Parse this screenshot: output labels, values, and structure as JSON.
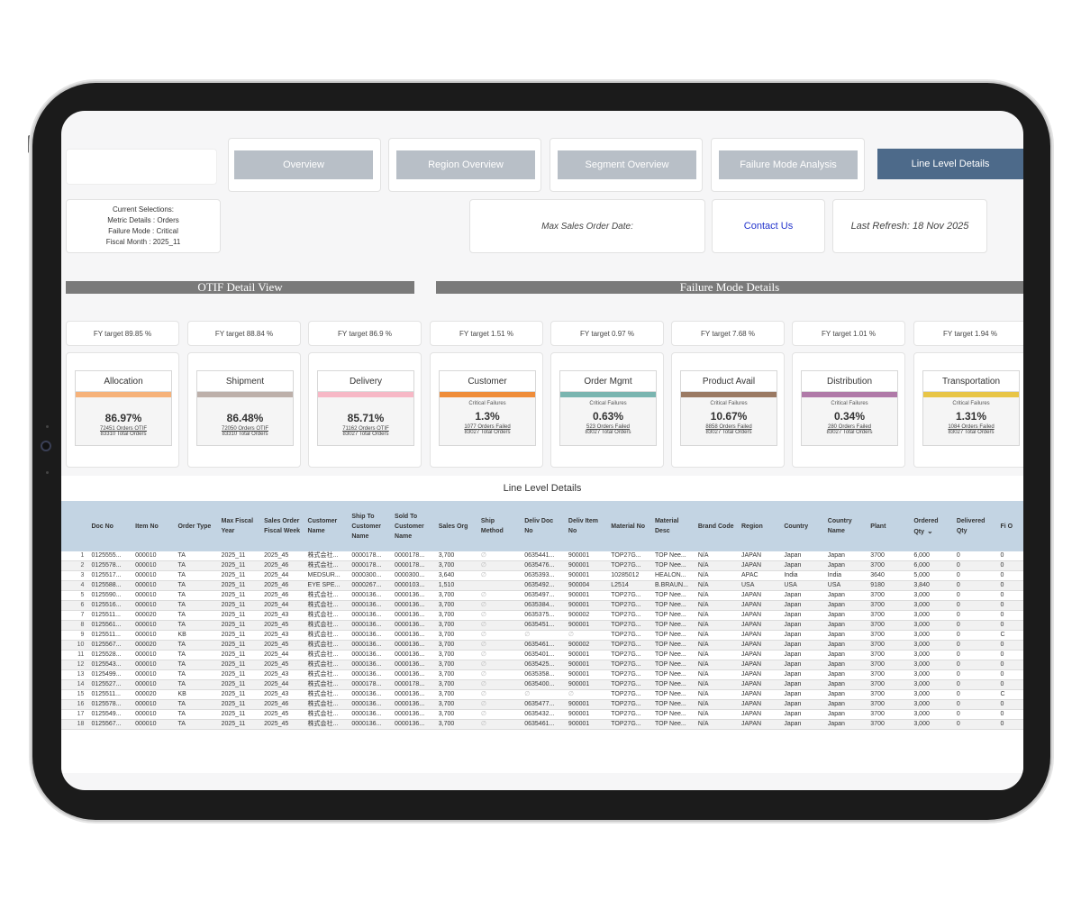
{
  "nav": {
    "overview": "Overview",
    "region_overview": "Region Overview",
    "segment_overview": "Segment Overview",
    "failure_mode_analysis": "Failure Mode Analysis",
    "line_level_details": "Line Level Details"
  },
  "selections": {
    "heading": "Current Selections:",
    "metric": "Metric Details :  Orders",
    "failure": "Failure Mode :  Critical",
    "month": "Fiscal Month :  2025_11"
  },
  "info": {
    "max_sales_order_date": "Max Sales Order Date:",
    "contact_us": "Contact Us",
    "last_refresh": "Last Refresh: 18 Nov 2025"
  },
  "sections": {
    "otif": "OTIF Detail View",
    "failure": "Failure Mode Details",
    "line_level": "Line Level Details"
  },
  "targets": [
    "FY target 89.85 %",
    "FY target 88.84 %",
    "FY target 86.9 %",
    "FY target 1.51 %",
    "FY target 0.97 %",
    "FY target 7.68 %",
    "FY target 1.01 %",
    "FY target 1.94 %"
  ],
  "metrics": [
    {
      "title": "Allocation",
      "color": "#f6b27a",
      "sub": "",
      "pct": "86.97%",
      "line1": "72451  Orders  OTIF",
      "line2": "83310  Total  Orders"
    },
    {
      "title": "Shipment",
      "color": "#bdb0aa",
      "sub": "",
      "pct": "86.48%",
      "line1": "72050  Orders  OTIF",
      "line2": "83310  Total  Orders"
    },
    {
      "title": "Delivery",
      "color": "#f7b8c6",
      "sub": "",
      "pct": "85.71%",
      "line1": "71162  Orders  OTIF",
      "line2": "83027 Total Orders"
    },
    {
      "title": "Customer",
      "color": "#ef8d3a",
      "sub": "Critical  Failures",
      "pct": "1.3%",
      "line1": "1077  Orders  Failed",
      "line2": "83027  Total  Orders"
    },
    {
      "title": "Order Mgmt",
      "color": "#7ab5b0",
      "sub": "Critical  Failures",
      "pct": "0.63%",
      "line1": "523  Orders  Failed",
      "line2": "83027  Total  Orders"
    },
    {
      "title": "Product Avail",
      "color": "#9b7a63",
      "sub": "Critical  Failures",
      "pct": "10.67%",
      "line1": "8858  Orders  Failed",
      "line2": "83027  Total  Orders"
    },
    {
      "title": "Distribution",
      "color": "#b07aa8",
      "sub": "Critical  Failures",
      "pct": "0.34%",
      "line1": "280  Orders  Failed",
      "line2": "83027  Total  Orders"
    },
    {
      "title": "Transportation",
      "color": "#e8c547",
      "sub": "Critical  Failures",
      "pct": "1.31%",
      "line1": "1084  Orders  Failed",
      "line2": "83027  Total  Orders"
    }
  ],
  "table": {
    "headers": [
      "",
      "Doc No",
      "Item No",
      "Order Type",
      "Max Fiscal Year",
      "Sales Order Fiscal Week",
      "Customer Name",
      "Ship To Customer Name",
      "Sold To Customer Name",
      "Sales Org",
      "Ship Method",
      "Deliv Doc No",
      "Deliv Item No",
      "Material No",
      "Material Desc",
      "Brand Code",
      "Region",
      "Country",
      "Country Name",
      "Plant",
      "Ordered Qty",
      "Delivered Qty",
      "Fi O"
    ],
    "sort_icon": "chevron-down-icon",
    "rows": [
      [
        "1",
        "0125555...",
        "000010",
        "TA",
        "2025_11",
        "2025_45",
        "株式会社...",
        "0000178...",
        "0000178...",
        "3,700",
        "∅",
        "0635441...",
        "900001",
        "TOP27G...",
        "TOP Nee...",
        "N/A",
        "JAPAN",
        "Japan",
        "Japan",
        "3700",
        "6,000",
        "0",
        "0"
      ],
      [
        "2",
        "0125578...",
        "000010",
        "TA",
        "2025_11",
        "2025_46",
        "株式会社...",
        "0000178...",
        "0000178...",
        "3,700",
        "∅",
        "0635476...",
        "900001",
        "TOP27G...",
        "TOP Nee...",
        "N/A",
        "JAPAN",
        "Japan",
        "Japan",
        "3700",
        "6,000",
        "0",
        "0"
      ],
      [
        "3",
        "0125517...",
        "000010",
        "TA",
        "2025_11",
        "2025_44",
        "MEDSUR...",
        "0000300...",
        "0000300...",
        "3,640",
        "∅",
        "0635393...",
        "900001",
        "10285012",
        "HEALON...",
        "N/A",
        "APAC",
        "India",
        "India",
        "3640",
        "5,000",
        "0",
        "0"
      ],
      [
        "4",
        "0125588...",
        "000010",
        "TA",
        "2025_11",
        "2025_46",
        "EYE SPE...",
        "0000267...",
        "0000103...",
        "1,510",
        "",
        "0635492...",
        "900004",
        "L2514",
        "B.BRAUN...",
        "N/A",
        "USA",
        "USA",
        "USA",
        "9180",
        "3,840",
        "0",
        "0"
      ],
      [
        "5",
        "0125590...",
        "000010",
        "TA",
        "2025_11",
        "2025_46",
        "株式会社...",
        "0000136...",
        "0000136...",
        "3,700",
        "∅",
        "0635497...",
        "900001",
        "TOP27G...",
        "TOP Nee...",
        "N/A",
        "JAPAN",
        "Japan",
        "Japan",
        "3700",
        "3,000",
        "0",
        "0"
      ],
      [
        "6",
        "0125516...",
        "000010",
        "TA",
        "2025_11",
        "2025_44",
        "株式会社...",
        "0000136...",
        "0000136...",
        "3,700",
        "∅",
        "0635384...",
        "900001",
        "TOP27G...",
        "TOP Nee...",
        "N/A",
        "JAPAN",
        "Japan",
        "Japan",
        "3700",
        "3,000",
        "0",
        "0"
      ],
      [
        "7",
        "0125511...",
        "000020",
        "TA",
        "2025_11",
        "2025_43",
        "株式会社...",
        "0000136...",
        "0000136...",
        "3,700",
        "∅",
        "0635375...",
        "900002",
        "TOP27G...",
        "TOP Nee...",
        "N/A",
        "JAPAN",
        "Japan",
        "Japan",
        "3700",
        "3,000",
        "0",
        "0"
      ],
      [
        "8",
        "0125561...",
        "000010",
        "TA",
        "2025_11",
        "2025_45",
        "株式会社...",
        "0000136...",
        "0000136...",
        "3,700",
        "∅",
        "0635451...",
        "900001",
        "TOP27G...",
        "TOP Nee...",
        "N/A",
        "JAPAN",
        "Japan",
        "Japan",
        "3700",
        "3,000",
        "0",
        "0"
      ],
      [
        "9",
        "0125511...",
        "000010",
        "KB",
        "2025_11",
        "2025_43",
        "株式会社...",
        "0000136...",
        "0000136...",
        "3,700",
        "∅",
        "∅",
        "∅",
        "TOP27G...",
        "TOP Nee...",
        "N/A",
        "JAPAN",
        "Japan",
        "Japan",
        "3700",
        "3,000",
        "0",
        "C"
      ],
      [
        "10",
        "0125567...",
        "000020",
        "TA",
        "2025_11",
        "2025_45",
        "株式会社...",
        "0000136...",
        "0000136...",
        "3,700",
        "∅",
        "0635461...",
        "900002",
        "TOP27G...",
        "TOP Nee...",
        "N/A",
        "JAPAN",
        "Japan",
        "Japan",
        "3700",
        "3,000",
        "0",
        "0"
      ],
      [
        "11",
        "0125528...",
        "000010",
        "TA",
        "2025_11",
        "2025_44",
        "株式会社...",
        "0000136...",
        "0000136...",
        "3,700",
        "∅",
        "0635401...",
        "900001",
        "TOP27G...",
        "TOP Nee...",
        "N/A",
        "JAPAN",
        "Japan",
        "Japan",
        "3700",
        "3,000",
        "0",
        "0"
      ],
      [
        "12",
        "0125543...",
        "000010",
        "TA",
        "2025_11",
        "2025_45",
        "株式会社...",
        "0000136...",
        "0000136...",
        "3,700",
        "∅",
        "0635425...",
        "900001",
        "TOP27G...",
        "TOP Nee...",
        "N/A",
        "JAPAN",
        "Japan",
        "Japan",
        "3700",
        "3,000",
        "0",
        "0"
      ],
      [
        "13",
        "0125499...",
        "000010",
        "TA",
        "2025_11",
        "2025_43",
        "株式会社...",
        "0000136...",
        "0000136...",
        "3,700",
        "∅",
        "0635358...",
        "900001",
        "TOP27G...",
        "TOP Nee...",
        "N/A",
        "JAPAN",
        "Japan",
        "Japan",
        "3700",
        "3,000",
        "0",
        "0"
      ],
      [
        "14",
        "0125527...",
        "000010",
        "TA",
        "2025_11",
        "2025_44",
        "株式会社...",
        "0000178...",
        "0000178...",
        "3,700",
        "∅",
        "0635400...",
        "900001",
        "TOP27G...",
        "TOP Nee...",
        "N/A",
        "JAPAN",
        "Japan",
        "Japan",
        "3700",
        "3,000",
        "0",
        "0"
      ],
      [
        "15",
        "0125511...",
        "000020",
        "KB",
        "2025_11",
        "2025_43",
        "株式会社...",
        "0000136...",
        "0000136...",
        "3,700",
        "∅",
        "∅",
        "∅",
        "TOP27G...",
        "TOP Nee...",
        "N/A",
        "JAPAN",
        "Japan",
        "Japan",
        "3700",
        "3,000",
        "0",
        "C"
      ],
      [
        "16",
        "0125578...",
        "000010",
        "TA",
        "2025_11",
        "2025_46",
        "株式会社...",
        "0000136...",
        "0000136...",
        "3,700",
        "∅",
        "0635477...",
        "900001",
        "TOP27G...",
        "TOP Nee...",
        "N/A",
        "JAPAN",
        "Japan",
        "Japan",
        "3700",
        "3,000",
        "0",
        "0"
      ],
      [
        "17",
        "0125549...",
        "000010",
        "TA",
        "2025_11",
        "2025_45",
        "株式会社...",
        "0000136...",
        "0000136...",
        "3,700",
        "∅",
        "0635432...",
        "900001",
        "TOP27G...",
        "TOP Nee...",
        "N/A",
        "JAPAN",
        "Japan",
        "Japan",
        "3700",
        "3,000",
        "0",
        "0"
      ],
      [
        "18",
        "0125567...",
        "000010",
        "TA",
        "2025_11",
        "2025_45",
        "株式会社...",
        "0000136...",
        "0000136...",
        "3,700",
        "∅",
        "0635461...",
        "900001",
        "TOP27G...",
        "TOP Nee...",
        "N/A",
        "JAPAN",
        "Japan",
        "Japan",
        "3700",
        "3,000",
        "0",
        "0"
      ]
    ]
  }
}
